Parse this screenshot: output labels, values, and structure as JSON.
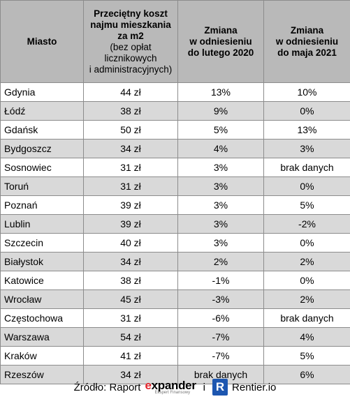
{
  "header": {
    "city": "Miasto",
    "cost_lines": [
      "Przeciętny koszt",
      "najmu mieszkania",
      "za m2"
    ],
    "cost_note_lines": [
      "(bez opłat",
      "licznikowych",
      "i administracyjnych)"
    ],
    "change2020_lines": [
      "Zmiana",
      "w odniesieniu",
      "do lutego 2020"
    ],
    "change2021_lines": [
      "Zmiana",
      "w odniesieniu",
      "do maja 2021"
    ]
  },
  "rows": [
    {
      "city": "Gdynia",
      "cost": "44 zł",
      "c2020": "13%",
      "c2021": "10%"
    },
    {
      "city": "Łódź",
      "cost": "38 zł",
      "c2020": "9%",
      "c2021": "0%"
    },
    {
      "city": "Gdańsk",
      "cost": "50 zł",
      "c2020": "5%",
      "c2021": "13%"
    },
    {
      "city": "Bydgoszcz",
      "cost": "34 zł",
      "c2020": "4%",
      "c2021": "3%"
    },
    {
      "city": "Sosnowiec",
      "cost": "31 zł",
      "c2020": "3%",
      "c2021": "brak danych"
    },
    {
      "city": "Toruń",
      "cost": "31 zł",
      "c2020": "3%",
      "c2021": "0%"
    },
    {
      "city": "Poznań",
      "cost": "39 zł",
      "c2020": "3%",
      "c2021": "5%"
    },
    {
      "city": "Lublin",
      "cost": "39 zł",
      "c2020": "3%",
      "c2021": "-2%"
    },
    {
      "city": "Szczecin",
      "cost": "40 zł",
      "c2020": "3%",
      "c2021": "0%"
    },
    {
      "city": "Białystok",
      "cost": "34 zł",
      "c2020": "2%",
      "c2021": "2%"
    },
    {
      "city": "Katowice",
      "cost": "38 zł",
      "c2020": "-1%",
      "c2021": "0%"
    },
    {
      "city": "Wrocław",
      "cost": "45 zł",
      "c2020": "-3%",
      "c2021": "2%"
    },
    {
      "city": "Częstochowa",
      "cost": "31 zł",
      "c2020": "-6%",
      "c2021": "brak danych"
    },
    {
      "city": "Warszawa",
      "cost": "54 zł",
      "c2020": "-7%",
      "c2021": "4%"
    },
    {
      "city": "Kraków",
      "cost": "41 zł",
      "c2020": "-7%",
      "c2021": "5%"
    },
    {
      "city": "Rzeszów",
      "cost": "34 zł",
      "c2020": "brak danych",
      "c2021": "6%"
    }
  ],
  "footer": {
    "source_label": "Źródło: Raport",
    "expander_first": "e",
    "expander_rest": "xpander",
    "expander_sub": "Ekspert Finansowy",
    "conjunction": "i",
    "rentier_mark": "R",
    "rentier_text": "Rentier.io"
  },
  "colors": {
    "header_bg": "#b9b9b9",
    "row_alt_bg": "#d9d9d9",
    "expander_accent": "#e3262d",
    "rentier_blue": "#1c56b0"
  }
}
